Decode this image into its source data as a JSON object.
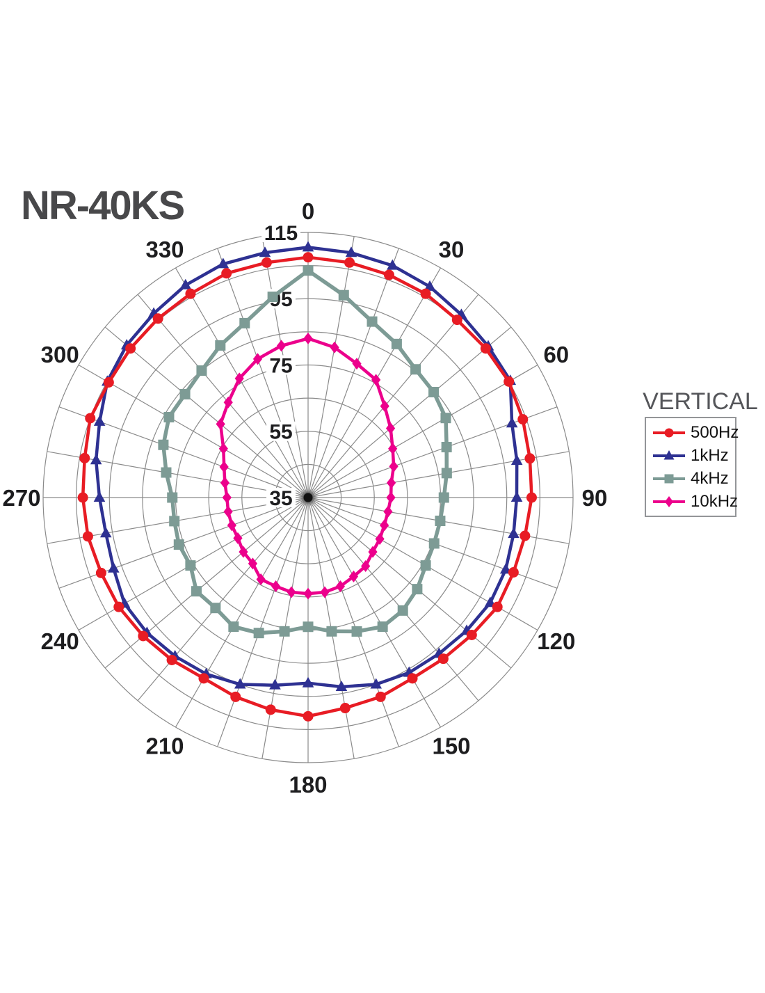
{
  "title": "NR-40KS",
  "legend": {
    "title": "VERTICAL"
  },
  "chart_data": {
    "type": "line",
    "subtype": "polar-directivity",
    "title": "NR-40KS",
    "legend_title": "VERTICAL",
    "units": "dB",
    "angle_step_deg": 10,
    "radial_min": 35,
    "radial_max": 115,
    "radial_ring_step": 10,
    "grid_on": true,
    "legend_position": "right",
    "radial_tick_labels": [
      {
        "value": 35,
        "label": "35"
      },
      {
        "value": 55,
        "label": "55"
      },
      {
        "value": 75,
        "label": "75"
      },
      {
        "value": 95,
        "label": "95"
      },
      {
        "value": 115,
        "label": "115"
      }
    ],
    "angle_tick_labels": [
      {
        "angle": 0,
        "label": "0"
      },
      {
        "angle": 30,
        "label": "30"
      },
      {
        "angle": 60,
        "label": "60"
      },
      {
        "angle": 90,
        "label": "90"
      },
      {
        "angle": 120,
        "label": "120"
      },
      {
        "angle": 150,
        "label": "150"
      },
      {
        "angle": 180,
        "label": "180"
      },
      {
        "angle": 210,
        "label": "210"
      },
      {
        "angle": 240,
        "label": "240"
      },
      {
        "angle": 270,
        "label": "270"
      },
      {
        "angle": 300,
        "label": "300"
      },
      {
        "angle": 330,
        "label": "330"
      }
    ],
    "angles_deg": [
      0,
      10,
      20,
      30,
      40,
      50,
      60,
      70,
      80,
      90,
      100,
      110,
      120,
      130,
      140,
      150,
      160,
      170,
      180,
      190,
      200,
      210,
      220,
      230,
      240,
      250,
      260,
      270,
      280,
      290,
      300,
      310,
      320,
      330,
      340,
      350
    ],
    "series": [
      {
        "name": "500Hz",
        "color": "#e81c24",
        "marker": "circle",
        "values": [
          107.5,
          107,
          106.5,
          106,
          105,
          105,
          105,
          104,
          103,
          102.5,
          101.5,
          101,
          101,
          99.5,
          98.5,
          98,
          99,
          99.5,
          101,
          100,
          99,
          98,
          99,
          100,
          101,
          101.5,
          102.5,
          103,
          103.5,
          105,
          104.5,
          105,
          105.5,
          106,
          107,
          107
        ]
      },
      {
        "name": "1kHz",
        "color": "#2e3192",
        "marker": "triangle",
        "values": [
          110.5,
          110,
          109.5,
          108.5,
          107,
          106,
          105.5,
          100.5,
          99,
          98,
          98,
          98.5,
          98.5,
          97.5,
          96.5,
          96,
          95,
          93,
          91,
          92.5,
          95,
          96.5,
          97.5,
          98.5,
          99,
          97.5,
          97,
          98,
          100,
          102,
          105,
          106.5,
          107.5,
          109,
          110,
          110
        ]
      },
      {
        "name": "4kHz",
        "color": "#7d9b95",
        "marker": "square",
        "values": [
          103.5,
          97,
          91.5,
          88.5,
          85.5,
          84.5,
          83,
          79.5,
          77.5,
          76,
          75.5,
          75.5,
          76,
          78,
          79.5,
          80,
          78,
          76,
          74,
          76,
          78.5,
          80,
          78.5,
          79,
          76,
          76.5,
          76,
          76,
          78.5,
          81.5,
          83.5,
          83.5,
          85,
          88,
          91,
          96.5
        ]
      },
      {
        "name": "10kHz",
        "color": "#ec008c",
        "marker": "diamond",
        "values": [
          83,
          81,
          78,
          76,
          71,
          67.5,
          64.5,
          62.5,
          60.5,
          60,
          59.5,
          59.5,
          60,
          60.5,
          62,
          62.5,
          63.5,
          64,
          64,
          64,
          63.5,
          63.5,
          61,
          60.5,
          59.5,
          59.5,
          59.5,
          59.5,
          60.5,
          62,
          64.5,
          69.5,
          72.5,
          76.5,
          79.5,
          81.5
        ]
      }
    ],
    "grid_color": "#8a8a8a",
    "tick_label_color": "#1d1d1f",
    "title_color": "#48484a",
    "legend_title_color": "#55565a"
  }
}
